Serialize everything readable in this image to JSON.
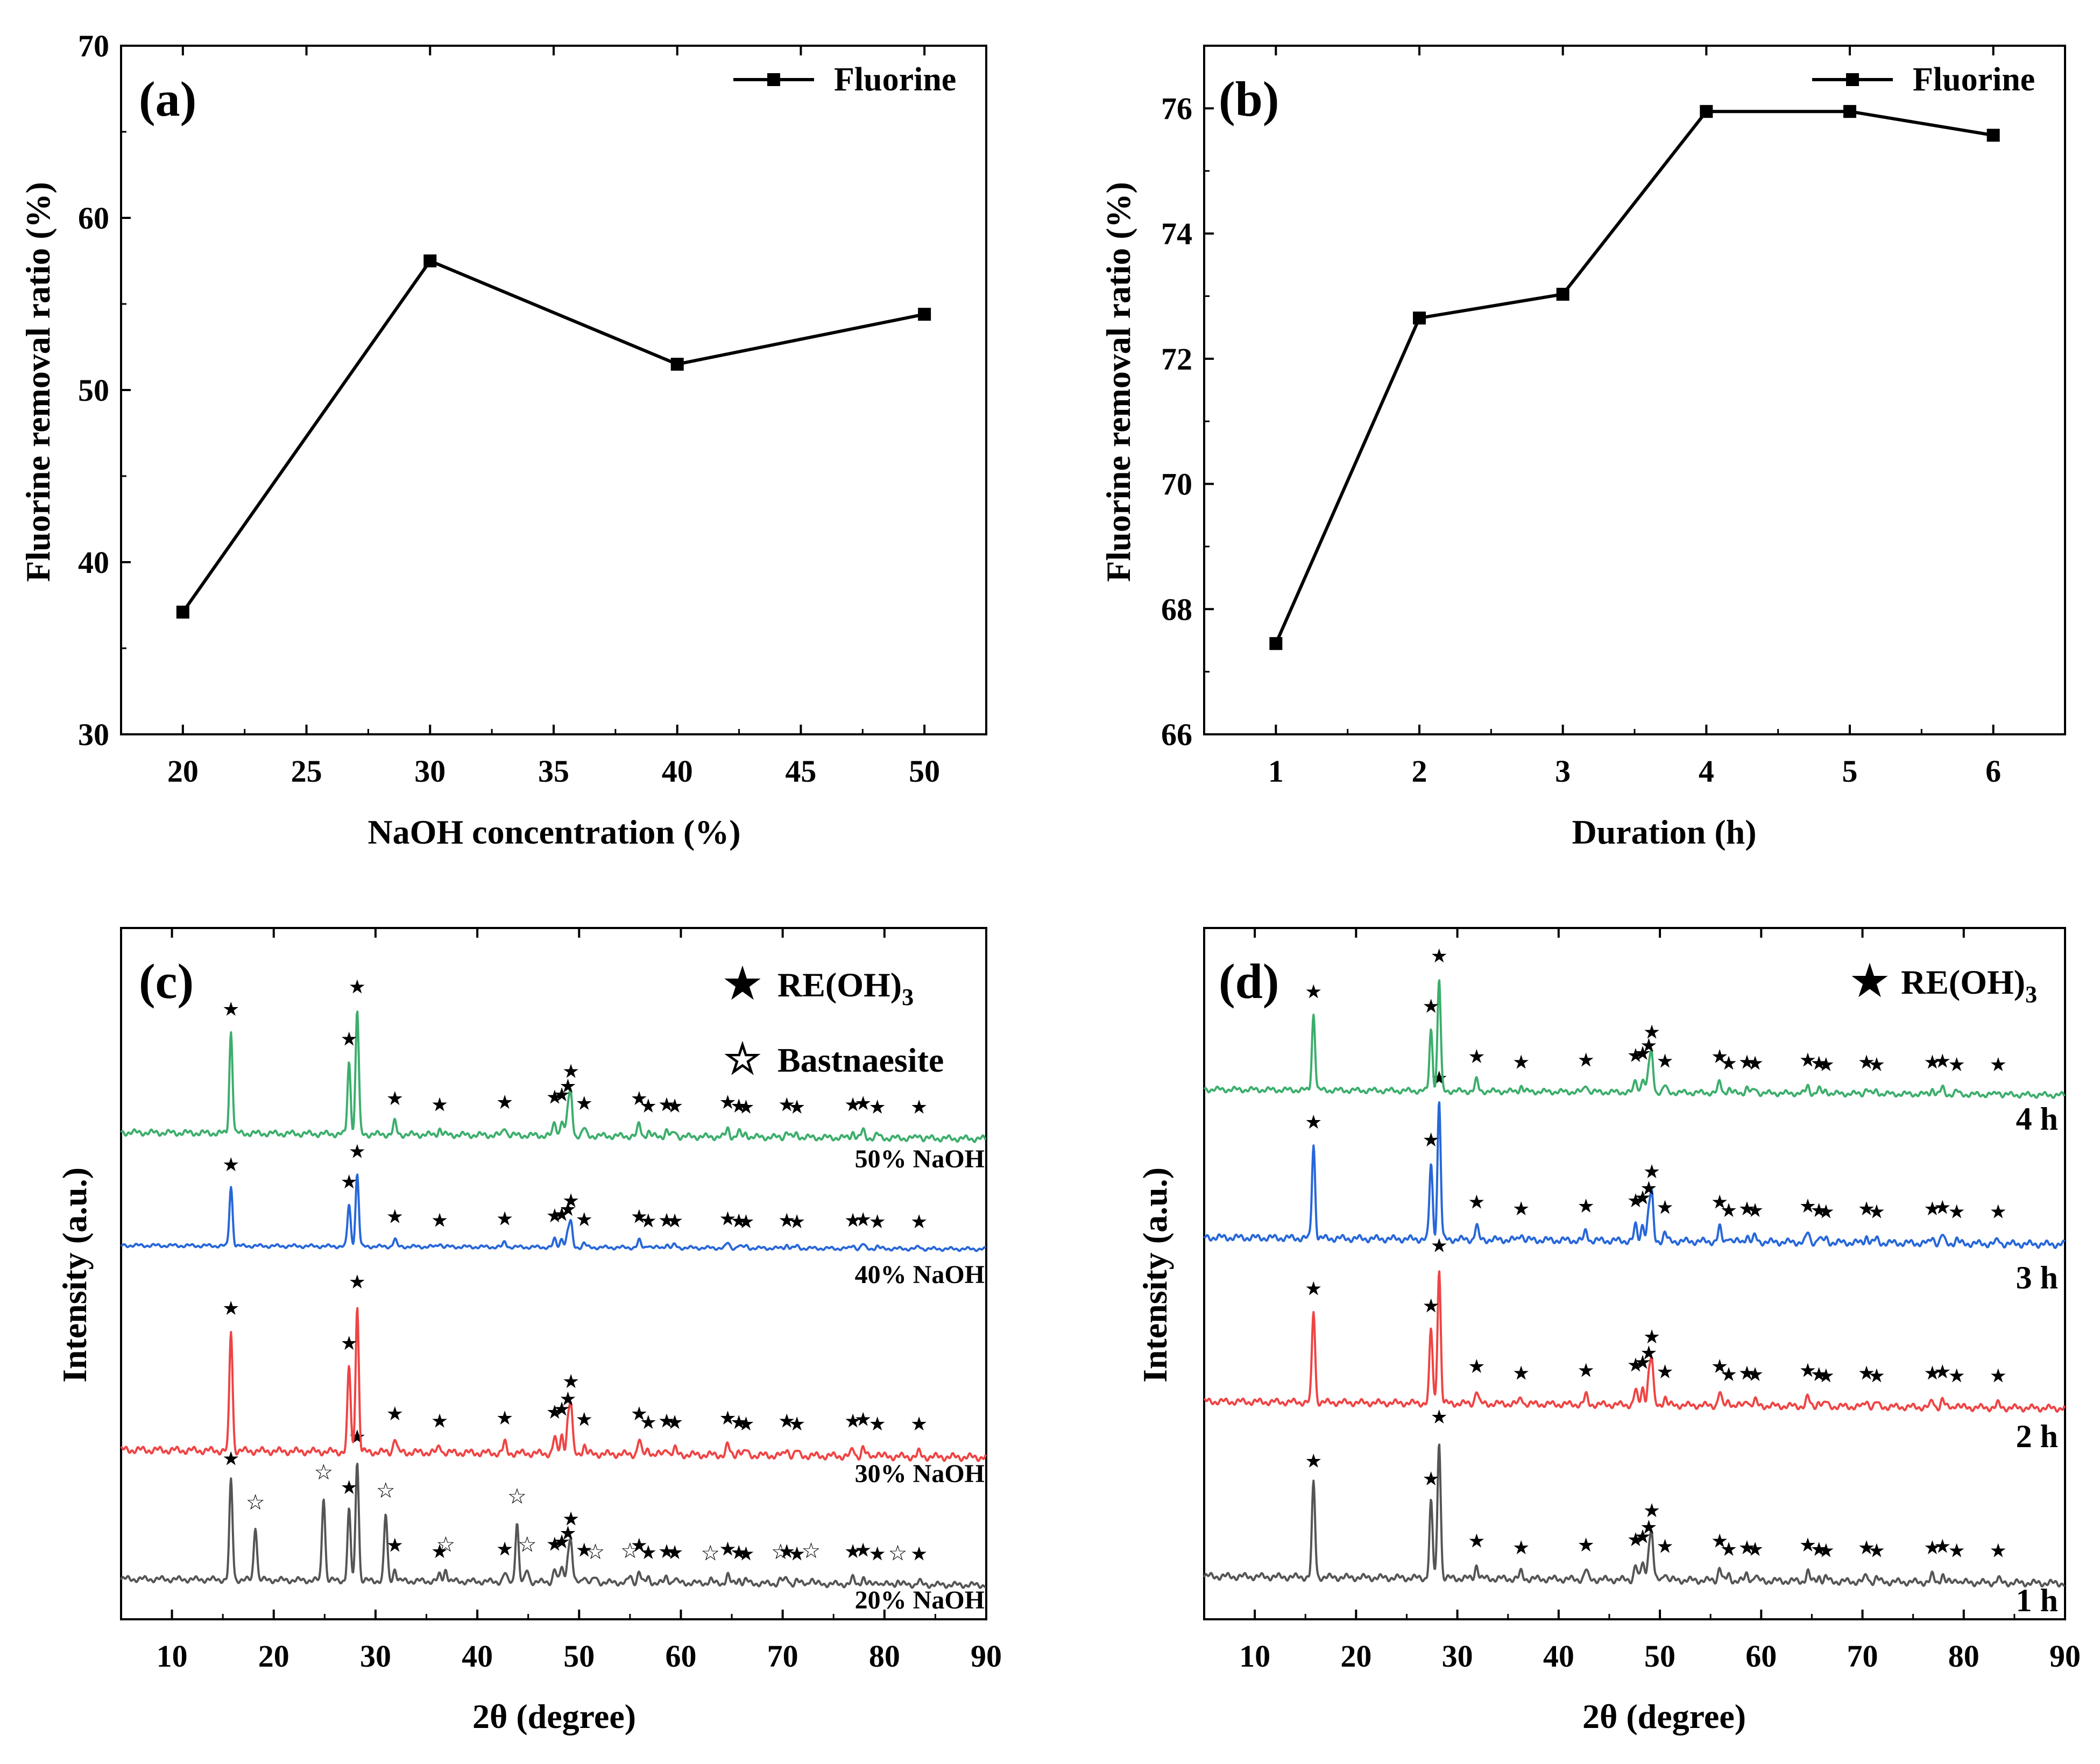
{
  "chart_data": [
    {
      "id": "a",
      "type": "line",
      "panel_label": "(a)",
      "xlabel": "NaOH concentration (%)",
      "ylabel": "Fluorine removal ratio (%)",
      "xlim": [
        17.5,
        52.5
      ],
      "ylim": [
        30,
        70
      ],
      "xticks": [
        20,
        25,
        30,
        35,
        40,
        45,
        50
      ],
      "yticks": [
        30,
        40,
        50,
        60,
        70
      ],
      "legend": {
        "label": "Fluorine",
        "placement": "top-right"
      },
      "series": [
        {
          "name": "Fluorine",
          "x": [
            20,
            30,
            40,
            50
          ],
          "y": [
            37.1,
            57.5,
            51.5,
            54.4
          ],
          "color": "#000000",
          "marker": "square"
        }
      ]
    },
    {
      "id": "b",
      "type": "line",
      "panel_label": "(b)",
      "xlabel": "Duration (h)",
      "ylabel": "Fluorine removal ratio (%)",
      "xlim": [
        0.5,
        6.5
      ],
      "ylim": [
        66,
        77
      ],
      "xticks": [
        1,
        2,
        3,
        4,
        5,
        6
      ],
      "yticks": [
        66,
        68,
        70,
        72,
        74,
        76
      ],
      "legend": {
        "label": "Fluorine",
        "placement": "top-right"
      },
      "series": [
        {
          "name": "Fluorine",
          "x": [
            1,
            2,
            3,
            4,
            5,
            6
          ],
          "y": [
            67.45,
            72.65,
            73.03,
            75.95,
            75.95,
            75.57
          ],
          "color": "#000000",
          "marker": "square"
        }
      ]
    },
    {
      "id": "c",
      "type": "line",
      "panel_label": "(c)",
      "xlabel": "2θ (degree)",
      "ylabel": "Intensity (a.u.)",
      "xlim": [
        5,
        90
      ],
      "xticks": [
        10,
        20,
        30,
        40,
        50,
        60,
        70,
        80,
        90
      ],
      "legend": [
        {
          "symbol": "★",
          "label": "RE(OH)",
          "subscript": "3"
        },
        {
          "symbol": "☆",
          "label": "Bastnaesite",
          "subscript": ""
        }
      ],
      "peaks_reoh3": [
        15.8,
        27.4,
        28.2,
        31.9,
        36.3,
        42.7,
        47.6,
        48.3,
        48.9,
        49.2,
        50.5,
        55.9,
        56.8,
        58.6,
        59.4,
        64.6,
        65.7,
        66.4,
        70.4,
        71.4,
        76.9,
        77.9,
        79.3,
        83.4
      ],
      "peak_heights_reoh3": [
        0.82,
        0.58,
        1.0,
        0.1,
        0.05,
        0.07,
        0.11,
        0.13,
        0.2,
        0.32,
        0.06,
        0.1,
        0.04,
        0.05,
        0.04,
        0.07,
        0.04,
        0.03,
        0.05,
        0.03,
        0.05,
        0.06,
        0.03,
        0.03
      ],
      "peaks_bastnaesite": [
        18.2,
        24.9,
        31.0,
        36.9,
        43.9,
        44.9,
        51.6,
        55.0,
        62.9,
        69.8,
        72.8,
        81.3
      ],
      "peak_heights_bastnaesite": [
        0.45,
        0.7,
        0.55,
        0.1,
        0.5,
        0.1,
        0.04,
        0.05,
        0.03,
        0.04,
        0.05,
        0.03
      ],
      "series": [
        {
          "name": "20% NaOH",
          "color": "#555555",
          "includes_bastnaesite": true,
          "scale": 0.7
        },
        {
          "name": "30% NaOH",
          "color": "#ef4444",
          "includes_bastnaesite": false,
          "scale": 0.85
        },
        {
          "name": "40% NaOH",
          "color": "#2767d9",
          "includes_bastnaesite": false,
          "scale": 0.42
        },
        {
          "name": "50% NaOH",
          "color": "#3cae6c",
          "includes_bastnaesite": false,
          "scale": 0.72
        }
      ]
    },
    {
      "id": "d",
      "type": "line",
      "panel_label": "(d)",
      "xlabel": "2θ (degree)",
      "ylabel": "Intensity (a.u.)",
      "xlim": [
        5,
        90
      ],
      "xticks": [
        10,
        20,
        30,
        40,
        50,
        60,
        70,
        80,
        90
      ],
      "legend": [
        {
          "symbol": "★",
          "label": "RE(OH)",
          "subscript": "3"
        }
      ],
      "peaks_reoh3": [
        15.8,
        27.4,
        28.2,
        31.9,
        36.3,
        42.7,
        47.6,
        48.3,
        48.9,
        49.2,
        50.5,
        55.9,
        56.8,
        58.6,
        59.4,
        64.6,
        65.7,
        66.4,
        70.4,
        71.4,
        76.9,
        77.9,
        79.3,
        83.4
      ],
      "peak_heights_reoh3": [
        0.68,
        0.55,
        1.0,
        0.1,
        0.05,
        0.07,
        0.11,
        0.13,
        0.2,
        0.32,
        0.06,
        0.1,
        0.04,
        0.05,
        0.04,
        0.07,
        0.04,
        0.03,
        0.05,
        0.03,
        0.05,
        0.06,
        0.03,
        0.03
      ],
      "series": [
        {
          "name": "1 h",
          "color": "#555555",
          "scale": 0.8
        },
        {
          "name": "2 h",
          "color": "#ef4444",
          "scale": 0.78
        },
        {
          "name": "3 h",
          "color": "#2767d9",
          "scale": 0.8
        },
        {
          "name": "4 h",
          "color": "#3cae6c",
          "scale": 0.65
        }
      ]
    }
  ]
}
